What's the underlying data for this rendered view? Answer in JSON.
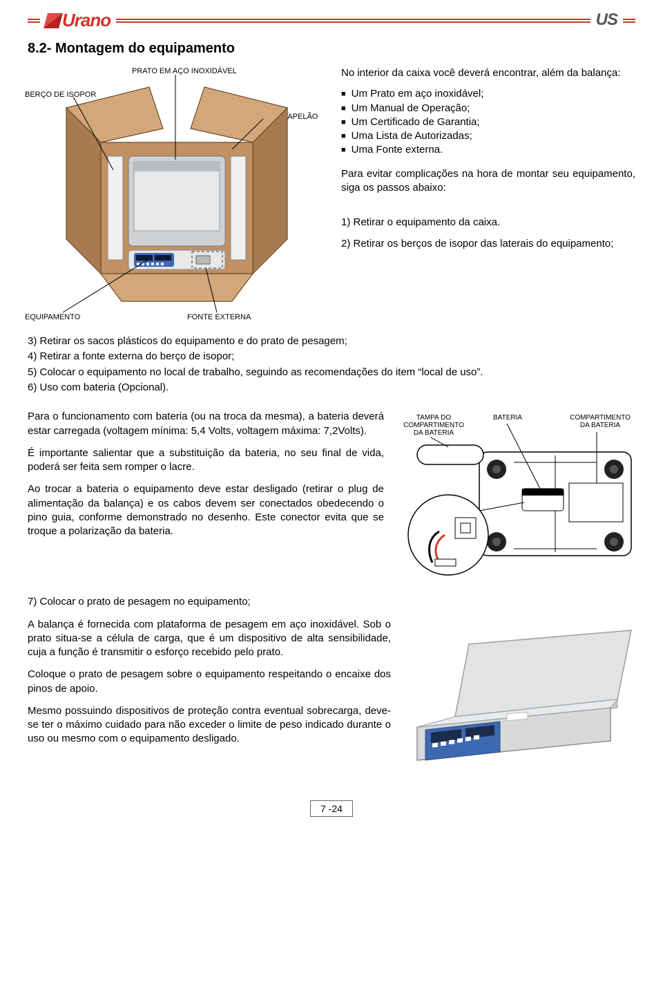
{
  "header": {
    "brand_left": "Urano",
    "brand_right": "US"
  },
  "section_title": "8.2- Montagem do equipamento",
  "fig1": {
    "labels": {
      "prato": "PRATO EM AÇO INOXIDÁVEL",
      "berco": "BERÇO DE ISOPOR",
      "caixa": "CAIXA DE PAPELÃO",
      "equip": "EQUIPAMENTO",
      "fonte": "FONTE EXTERNA"
    },
    "colors": {
      "carton_light": "#d2a77a",
      "carton_mid": "#c19063",
      "carton_dark": "#a87a4f",
      "carton_edge": "#6b4c2a",
      "steel": "#cfd2d5",
      "steel_dark": "#9aa0a4",
      "panel_blue": "#3d68b2",
      "line": "#000000"
    }
  },
  "intro": {
    "lead": "No interior da caixa você deverá encontrar, além da balança:",
    "items": [
      "Um Prato em aço inoxidável;",
      "Um Manual de Operação;",
      "Um Certificado de Garantia;",
      "Uma Lista de Autorizadas;",
      "Uma Fonte externa."
    ],
    "avoid": "Para evitar complicações na hora de montar seu equipamento, siga os passos abaixo:",
    "step1": "1) Retirar o equipamento da caixa.",
    "step2": "2) Retirar os berços de isopor das laterais do equipamento;"
  },
  "steps_after": {
    "s3": "3) Retirar os sacos plásticos do equipamento e do prato de pesagem;",
    "s4": "4) Retirar a fonte externa do berço de isopor;",
    "s5": "5) Colocar o equipamento no local de trabalho, seguindo as recomendações do item “local de uso”.",
    "s6": "6) Uso com bateria (Opcional)."
  },
  "fig2": {
    "labels": {
      "tampa": "TAMPA DO\nCOMPARTIMENTO\nDA BATERIA",
      "bateria": "BATERIA",
      "compart": "COMPARTIMENTO\nDA BATERIA"
    },
    "colors": {
      "stroke": "#000000",
      "fill": "#ffffff",
      "wire_red": "#d63a2f",
      "wire_blk": "#000000",
      "foot": "#222222"
    }
  },
  "battery_text": {
    "p1": "Para o funcionamento com bateria (ou na troca da mesma), a bateria deverá estar carregada (voltagem mínima: 5,4 Volts, voltagem máxima: 7,2Volts).",
    "p2": "É importante salientar que a substituição da bateria, no seu final de vida, poderá ser feita sem romper o lacre.",
    "p3": "Ao trocar a bateria o equipamento deve estar desligado (retirar o plug de alimentação da balança) e os cabos devem ser conectados obedecendo o pino guia, conforme demonstrado no desenho. Este conector evita que se troque a polarização da bateria."
  },
  "step7": "7) Colocar o prato de pesagem no equipamento;",
  "plate_text": {
    "p1": "A balança é fornecida com plataforma de pesagem em aço inoxidável. Sob o prato situa-se a célula de carga, que é um dispositivo de alta sensibilidade, cuja a função é transmitir o esforço recebido pelo prato.",
    "p2": "Coloque o prato de pesagem sobre o equipamento respeitando o encaixe dos pinos de apoio.",
    "p3": "Mesmo possuindo dispositivos de proteção contra eventual sobrecarga, deve-se ter o máximo cuidado para não exceder o limite de peso indicado durante o uso ou mesmo com o equipamento desligado."
  },
  "fig3": {
    "colors": {
      "tray": "#e1e3e5",
      "tray_edge": "#9aa0a4",
      "body": "#d7d9db",
      "panel": "#3d68b2",
      "screen": "#1b2b4a",
      "stroke": "#55595c"
    }
  },
  "footer": {
    "page": "7 -24"
  }
}
